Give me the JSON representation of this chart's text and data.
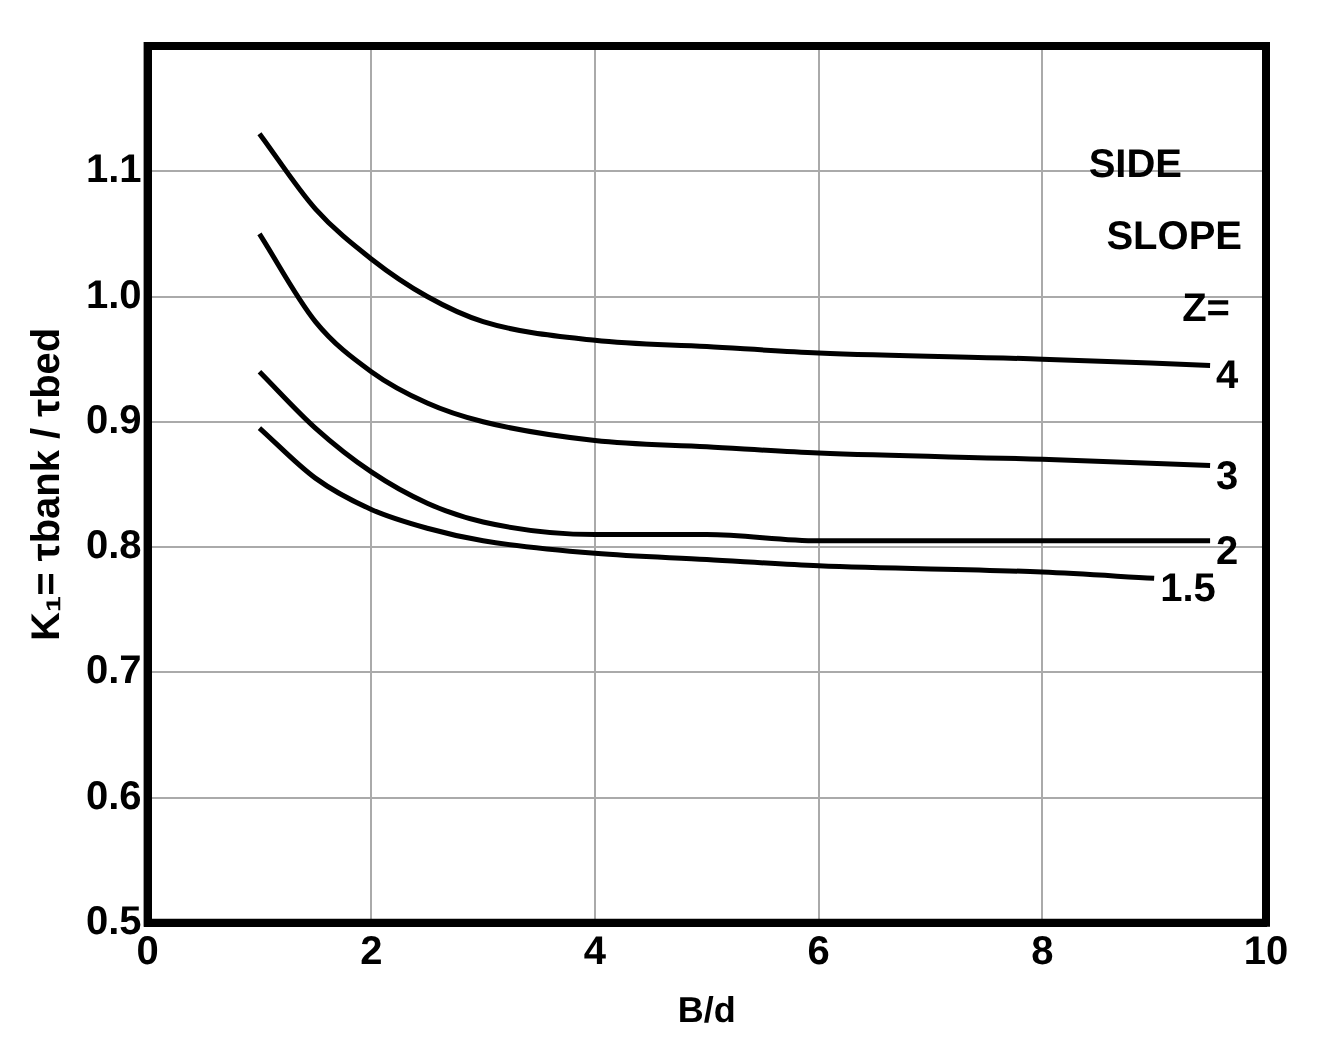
{
  "chart_data": {
    "type": "line",
    "xlabel": "B/d",
    "ylabel": "K₁= τbank / τbed",
    "legend_title": "SIDE SLOPE Z=",
    "x": [
      1,
      1.5,
      2,
      2.5,
      3,
      4,
      5,
      6,
      8,
      9.5
    ],
    "series": [
      {
        "name": "4",
        "color": "#000000",
        "values": [
          1.13,
          1.07,
          1.03,
          1.0,
          0.98,
          0.965,
          0.96,
          0.955,
          0.95,
          0.945
        ]
      },
      {
        "name": "3",
        "color": "#000000",
        "values": [
          1.05,
          0.98,
          0.94,
          0.915,
          0.9,
          0.885,
          0.88,
          0.875,
          0.87,
          0.865
        ]
      },
      {
        "name": "2",
        "color": "#000000",
        "values": [
          0.94,
          0.895,
          0.86,
          0.835,
          0.82,
          0.81,
          0.81,
          0.805,
          0.805,
          0.805
        ]
      },
      {
        "name": "1.5",
        "color": "#000000",
        "x": [
          1,
          1.5,
          2,
          2.5,
          3,
          4,
          5,
          6,
          8,
          9
        ],
        "values": [
          0.895,
          0.855,
          0.83,
          0.815,
          0.805,
          0.795,
          0.79,
          0.785,
          0.78,
          0.775
        ]
      }
    ],
    "xlim": [
      0,
      10
    ],
    "xticks": [
      0,
      2,
      4,
      6,
      8,
      10
    ],
    "ylim": [
      0.5,
      1.2
    ],
    "yticks": [
      0.5,
      0.6,
      0.7,
      0.8,
      0.9,
      {
        "value": 1.0,
        "label": "1.0"
      },
      1.1
    ],
    "grid": true,
    "legend": false,
    "marker": "none",
    "line_style": "solid"
  }
}
